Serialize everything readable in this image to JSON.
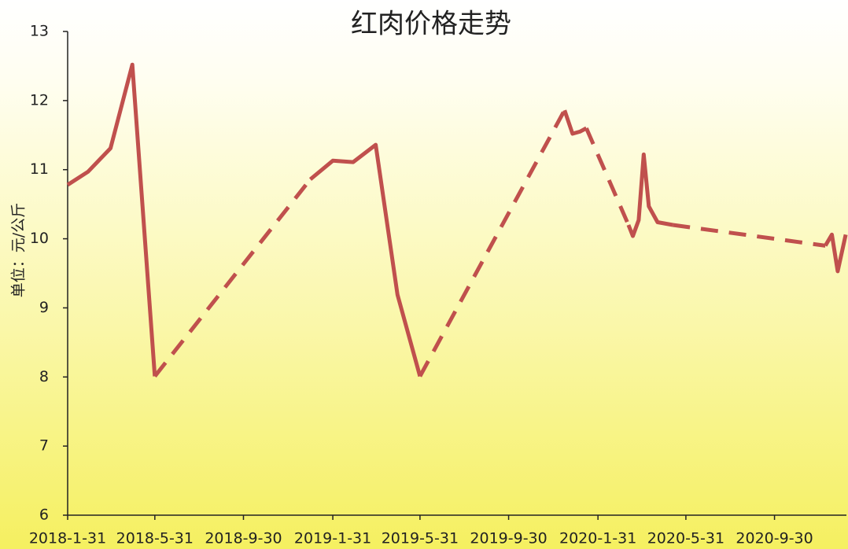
{
  "chart_data": {
    "type": "line",
    "title": "红肉价格走势",
    "y_label": "单位：元/公斤",
    "x": [
      "2018-1-31",
      "2018-2-28",
      "2018-3-31",
      "2018-4-30",
      "2018-5-31",
      "2018-12-31",
      "2019-1-31",
      "2019-2-28",
      "2019-3-31",
      "2019-4-30",
      "2019-5-31",
      "2019-12-16",
      "2019-12-27",
      "2020-1-6",
      "2020-1-15",
      "2020-3-13",
      "2020-3-19",
      "2020-3-27",
      "2020-4-3",
      "2020-4-10",
      "2020-4-22",
      "2020-5-13",
      "2020-12-9",
      "2020-12-18",
      "2020-12-26",
      "2021-1-6"
    ],
    "series": [
      {
        "name": "红肉价格",
        "color": "#c0504d",
        "gap_style": "dashed",
        "values": [
          10.78,
          10.97,
          11.31,
          12.52,
          8.01,
          10.86,
          11.13,
          11.11,
          11.36,
          9.19,
          8.01,
          11.86,
          11.52,
          11.55,
          11.6,
          10.2,
          10.04,
          10.27,
          11.22,
          10.47,
          10.24,
          10.2,
          9.9,
          10.06,
          9.53,
          10.06
        ]
      }
    ],
    "xlim": [
      "2018-1-31",
      "2021-1-7"
    ],
    "xticks": [
      "2018-1-31",
      "2018-5-31",
      "2018-9-30",
      "2019-1-31",
      "2019-5-31",
      "2019-9-30",
      "2020-1-31",
      "2020-5-31",
      "2020-9-30"
    ],
    "ylim": [
      6,
      13
    ],
    "yticks": [
      6,
      7,
      8,
      9,
      10,
      11,
      12,
      13
    ],
    "grid": false
  }
}
